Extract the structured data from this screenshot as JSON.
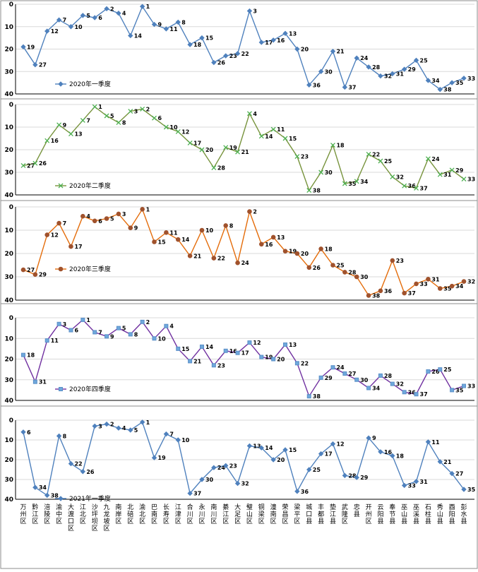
{
  "chart_data": [
    {
      "type": "line",
      "color": "#4f81bd",
      "marker": "diamond",
      "ylim": [
        0,
        40
      ],
      "yticks": [
        0,
        10,
        20,
        30,
        40
      ],
      "y_inverted": true,
      "grid": true,
      "legend_position": "bottom-left",
      "series": [
        {
          "name": "2020年一季度",
          "values": [
            19,
            27,
            12,
            7,
            10,
            5,
            6,
            2,
            4,
            14,
            1,
            9,
            11,
            8,
            18,
            15,
            26,
            23,
            22,
            3,
            17,
            16,
            13,
            20,
            36,
            30,
            21,
            37,
            24,
            28,
            32,
            31,
            29,
            25,
            34,
            38,
            35,
            33
          ]
        }
      ]
    },
    {
      "type": "line",
      "color": "#77933c",
      "marker": "x",
      "ylim": [
        0,
        40
      ],
      "yticks": [
        0,
        10,
        20,
        30,
        40
      ],
      "y_inverted": true,
      "grid": true,
      "legend_position": "bottom-left",
      "series": [
        {
          "name": "2020年二季度",
          "values": [
            27,
            26,
            16,
            9,
            13,
            7,
            1,
            5,
            8,
            3,
            2,
            6,
            10,
            12,
            17,
            20,
            28,
            19,
            21,
            4,
            14,
            11,
            15,
            23,
            38,
            30,
            18,
            35,
            34,
            22,
            25,
            32,
            36,
            37,
            24,
            31,
            29,
            33
          ]
        }
      ]
    },
    {
      "type": "line",
      "color": "#e46c0a",
      "marker": "circle",
      "ylim": [
        0,
        40
      ],
      "yticks": [
        0,
        10,
        20,
        30,
        40
      ],
      "y_inverted": true,
      "grid": true,
      "legend_position": "bottom-left",
      "series": [
        {
          "name": "2020年三季度",
          "values": [
            27,
            29,
            12,
            7,
            17,
            4,
            6,
            5,
            3,
            9,
            1,
            15,
            11,
            14,
            21,
            10,
            22,
            8,
            24,
            2,
            16,
            13,
            19,
            20,
            26,
            18,
            25,
            28,
            30,
            38,
            36,
            23,
            37,
            33,
            31,
            35,
            34,
            32
          ]
        }
      ]
    },
    {
      "type": "line",
      "color": "#7030a0",
      "marker": "square",
      "ylim": [
        0,
        40
      ],
      "yticks": [
        0,
        10,
        20,
        30,
        40
      ],
      "y_inverted": true,
      "grid": true,
      "legend_position": "bottom-left",
      "series": [
        {
          "name": "2020年四季度",
          "values": [
            18,
            31,
            11,
            3,
            6,
            1,
            7,
            9,
            5,
            8,
            2,
            10,
            4,
            15,
            21,
            14,
            23,
            16,
            17,
            12,
            19,
            20,
            13,
            22,
            38,
            29,
            24,
            27,
            30,
            34,
            28,
            32,
            36,
            37,
            26,
            25,
            35,
            33
          ]
        }
      ]
    },
    {
      "type": "line",
      "color": "#4f81bd",
      "marker": "diamond",
      "ylim": [
        0,
        40
      ],
      "yticks": [
        0,
        10,
        20,
        30,
        40
      ],
      "y_inverted": true,
      "grid": true,
      "legend_position": "bottom-left",
      "categories": [
        "万州区",
        "黔江区",
        "涪陵区",
        "渝中区",
        "大渡口区",
        "江北区",
        "沙坪坝区",
        "九龙坡区",
        "南岸区",
        "北碚区",
        "渝北区",
        "巴南区",
        "长寿区",
        "江津区",
        "合川区",
        "永川区",
        "南川区",
        "綦江区",
        "大足区",
        "璧山区",
        "铜梁区",
        "潼南区",
        "荣昌区",
        "梁平区",
        "城口县",
        "丰都县",
        "垫江县",
        "武隆区",
        "忠县",
        "开州区",
        "云阳县",
        "奉节县",
        "巫山县",
        "巫溪县",
        "石柱县",
        "秀山县",
        "酉阳县",
        "彭水县"
      ],
      "series": [
        {
          "name": "2021年一季度",
          "values": [
            6,
            34,
            38,
            8,
            22,
            26,
            3,
            2,
            4,
            5,
            1,
            19,
            7,
            10,
            37,
            30,
            24,
            23,
            32,
            13,
            14,
            20,
            15,
            36,
            25,
            17,
            12,
            28,
            29,
            9,
            16,
            18,
            33,
            31,
            11,
            21,
            27,
            35
          ]
        }
      ]
    }
  ]
}
